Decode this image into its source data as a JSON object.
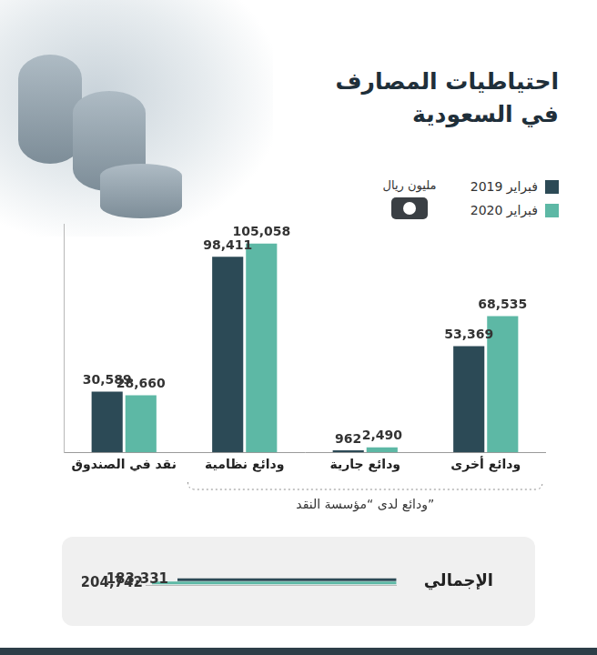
{
  "chart_data": [
    {
      "type": "bar",
      "title": "احتياطيات المصارف\nفي السعودية",
      "ylabel": "مليون ريال",
      "categories": [
        "نقد في الصندوق",
        "ودائع نظامية",
        "ودائع جارية",
        "ودائع أخرى"
      ],
      "series": [
        {
          "name": "فبراير 2019",
          "color": "#2c4a56",
          "values": [
            30589,
            98411,
            962,
            53369
          ],
          "value_labels": [
            "30,589",
            "98,411",
            "962",
            "53,369"
          ]
        },
        {
          "name": "فبراير 2020",
          "color": "#5db8a5",
          "values": [
            28660,
            105058,
            2490,
            68535
          ],
          "value_labels": [
            "28,660",
            "105,058",
            "2,490",
            "68,535"
          ]
        }
      ],
      "annotations": [
        {
          "text": "ودائع لدى “مؤسسة النقد”",
          "categories": [
            "ودائع نظامية",
            "ودائع جارية",
            "ودائع أخرى"
          ]
        }
      ],
      "ylim": [
        0,
        115000
      ],
      "grid": false,
      "legend": "top-right",
      "data_labels": true,
      "tick_labels": "x"
    },
    {
      "type": "bar",
      "orientation": "horizontal",
      "categories": [
        "الإجمالي"
      ],
      "series": [
        {
          "color": "#2c4a56",
          "values": [
            183331
          ],
          "value_labels": [
            "183,331"
          ]
        },
        {
          "color": "#5db8a5",
          "values": [
            204742
          ],
          "value_labels": [
            "204,742"
          ]
        }
      ],
      "xlim": [
        0,
        210000
      ],
      "grid": false,
      "data_labels": true,
      "tick_labels": "y"
    }
  ]
}
